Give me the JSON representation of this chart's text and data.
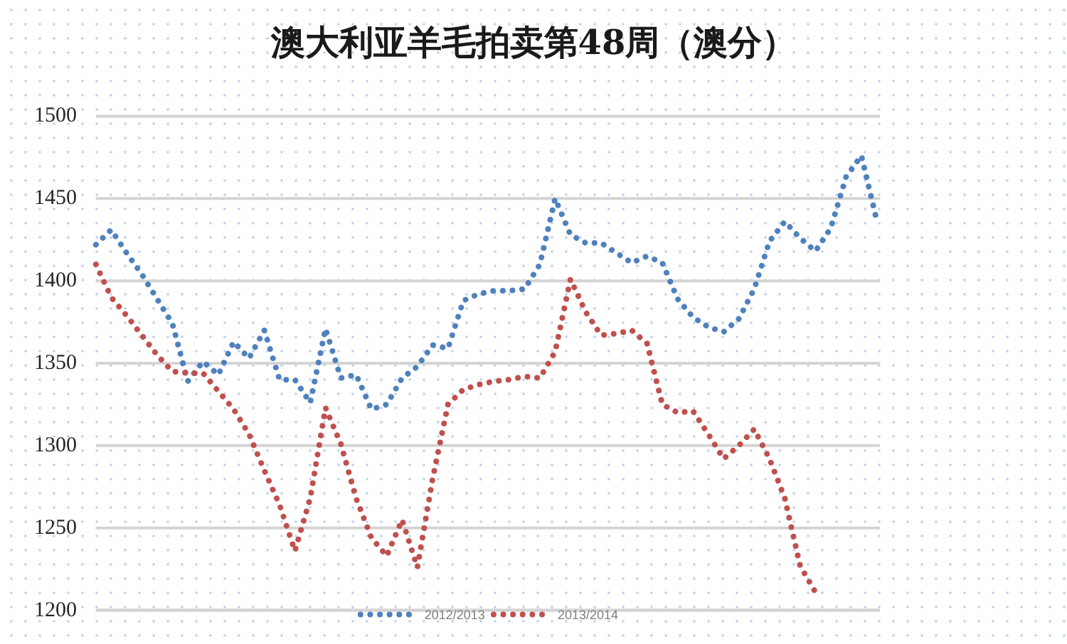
{
  "chart_data": {
    "type": "line",
    "title": "澳大利亚羊毛拍卖第48周（澳分）",
    "categories": [
      null,
      null,
      null,
      null,
      null,
      null,
      null,
      null,
      null,
      null,
      null,
      null,
      null,
      null,
      null,
      null,
      null,
      null,
      null,
      null,
      null,
      null,
      null,
      null,
      null,
      null,
      null,
      null,
      null,
      null,
      null,
      null,
      null,
      null,
      null,
      null,
      null,
      null,
      null,
      null,
      null,
      null,
      null,
      null,
      null,
      null,
      null,
      null,
      null,
      null,
      null,
      null
    ],
    "series": [
      {
        "name": "2012/2013",
        "color": "#4f81bd",
        "values": [
          1422,
          1431,
          1417,
          1404,
          1389,
          1374,
          1339,
          1351,
          1343,
          1363,
          1353,
          1370,
          1340,
          1340,
          1326,
          1371,
          1341,
          1343,
          1322,
          1325,
          1341,
          1348,
          1361,
          1359,
          1388,
          1392,
          1394,
          1394,
          1395,
          1410,
          1450,
          1428,
          1423,
          1423,
          1417,
          1411,
          1415,
          1411,
          1389,
          1378,
          1372,
          1369,
          1377,
          1395,
          1424,
          1436,
          1426,
          1418,
          1432,
          1463,
          1476,
          1437
        ]
      },
      {
        "name": "2013/2014",
        "color": "#c0504d",
        "values": [
          1410,
          1390,
          1379,
          1367,
          1355,
          1345,
          1344,
          1344,
          1333,
          1322,
          1307,
          1285,
          1264,
          1236,
          1268,
          1323,
          1301,
          1268,
          1244,
          1233,
          1255,
          1226,
          1280,
          1325,
          1334,
          1337,
          1339,
          1340,
          1342,
          1341,
          1357,
          1401,
          1381,
          1367,
          1368,
          1370,
          1362,
          1325,
          1320,
          1321,
          1307,
          1292,
          1300,
          1310,
          1292,
          1268,
          1227,
          1211,
          null,
          null,
          null,
          null
        ]
      }
    ],
    "ylim": [
      1200,
      1500
    ],
    "yticks": [
      1200,
      1250,
      1300,
      1350,
      1400,
      1450,
      1500
    ],
    "grid": "y",
    "legend": "bottom",
    "tick_labels": "y",
    "line_style": "dotted"
  }
}
